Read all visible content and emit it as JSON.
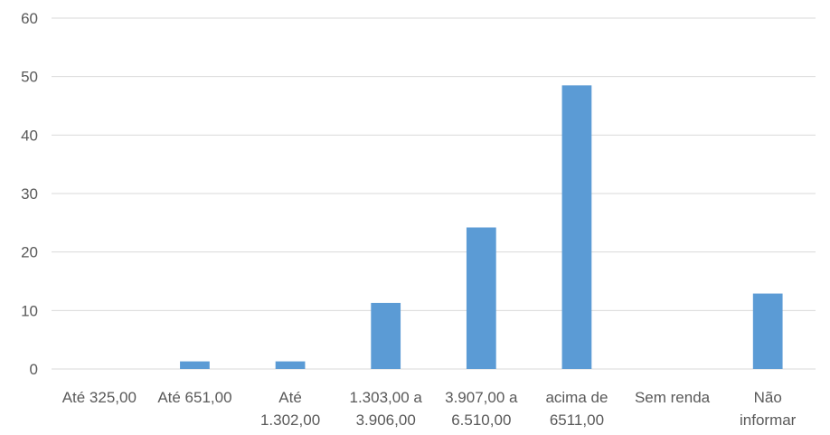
{
  "chart_data": {
    "type": "bar",
    "title": "",
    "xlabel": "",
    "ylabel": "",
    "ylim": [
      0,
      60
    ],
    "yticks": [
      0,
      10,
      20,
      30,
      40,
      50,
      60
    ],
    "grid": true,
    "legend": "none",
    "bar_color": "#5b9bd5",
    "grid_color": "#d9d9d9",
    "text_color": "#595959",
    "categories": [
      [
        "Até 325,00"
      ],
      [
        "Até 651,00"
      ],
      [
        "Até",
        "1.302,00"
      ],
      [
        "1.303,00 a",
        "3.906,00"
      ],
      [
        "3.907,00 a",
        "6.510,00"
      ],
      [
        "acima de",
        "6511,00"
      ],
      [
        "Sem renda"
      ],
      [
        "Não",
        "informar"
      ]
    ],
    "values": [
      0,
      1.3,
      1.3,
      11.3,
      24.2,
      48.5,
      0,
      12.9
    ]
  }
}
